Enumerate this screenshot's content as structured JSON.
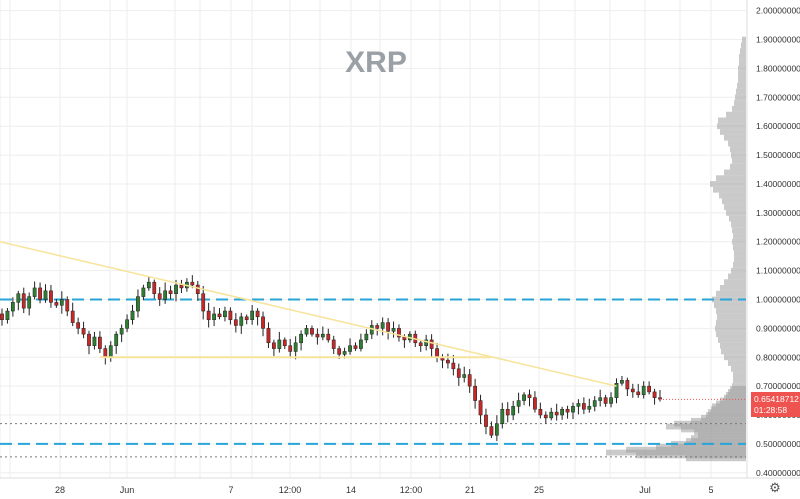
{
  "chart_data": {
    "type": "candlestick",
    "title": "XRP",
    "y_axis": {
      "min": 0.375,
      "max": 2.03,
      "ticks": [
        "0.40000000",
        "0.50000000",
        "0.60000000",
        "0.70000000",
        "0.80000000",
        "0.90000000",
        "1.00000000",
        "1.10000000",
        "1.20000000",
        "1.30000000",
        "1.40000000",
        "1.50000000",
        "1.60000000",
        "1.70000000",
        "1.80000000",
        "1.90000000",
        "2.00000000"
      ],
      "tick_values": [
        0.4,
        0.5,
        0.6,
        0.7,
        0.8,
        0.9,
        1.0,
        1.1,
        1.2,
        1.3,
        1.4,
        1.5,
        1.6,
        1.7,
        1.8,
        1.9,
        2.0
      ]
    },
    "x_axis": {
      "ticks": [
        "28",
        "Jun",
        "7",
        "12:00",
        "14",
        "12:00",
        "21",
        "25",
        "Jul",
        "5"
      ]
    },
    "grid": true,
    "current_price": "0.65418712",
    "countdown": "01:28:58",
    "closes": [
      0.93,
      0.96,
      0.99,
      1.02,
      0.97,
      1.01,
      1.04,
      1.0,
      1.03,
      0.99,
      0.98,
      1.0,
      0.96,
      0.92,
      0.9,
      0.88,
      0.84,
      0.87,
      0.83,
      0.8,
      0.84,
      0.88,
      0.9,
      0.93,
      0.96,
      1.01,
      1.04,
      1.06,
      1.02,
      1.0,
      1.03,
      1.02,
      1.05,
      1.04,
      1.06,
      1.05,
      1.02,
      0.96,
      0.93,
      0.95,
      0.94,
      0.96,
      0.93,
      0.91,
      0.94,
      0.93,
      0.96,
      0.94,
      0.9,
      0.85,
      0.83,
      0.86,
      0.84,
      0.82,
      0.85,
      0.88,
      0.9,
      0.88,
      0.87,
      0.88,
      0.86,
      0.83,
      0.81,
      0.82,
      0.84,
      0.83,
      0.86,
      0.88,
      0.91,
      0.9,
      0.92,
      0.89,
      0.9,
      0.87,
      0.86,
      0.88,
      0.85,
      0.84,
      0.86,
      0.83,
      0.8,
      0.79,
      0.78,
      0.76,
      0.73,
      0.74,
      0.7,
      0.65,
      0.6,
      0.56,
      0.53,
      0.57,
      0.62,
      0.6,
      0.63,
      0.65,
      0.67,
      0.66,
      0.62,
      0.6,
      0.59,
      0.61,
      0.6,
      0.62,
      0.61,
      0.63,
      0.64,
      0.62,
      0.63,
      0.65,
      0.66,
      0.64,
      0.66,
      0.71,
      0.72,
      0.69,
      0.68,
      0.67,
      0.7,
      0.68,
      0.66,
      0.655
    ],
    "volume_profile": [
      [
        0.45,
        60
      ],
      [
        0.46,
        110
      ],
      [
        0.47,
        140
      ],
      [
        0.48,
        120
      ],
      [
        0.49,
        90
      ],
      [
        0.5,
        75
      ],
      [
        0.51,
        60
      ],
      [
        0.52,
        55
      ],
      [
        0.53,
        48
      ],
      [
        0.54,
        52
      ],
      [
        0.55,
        65
      ],
      [
        0.56,
        80
      ],
      [
        0.57,
        72
      ],
      [
        0.58,
        55
      ],
      [
        0.59,
        45
      ],
      [
        0.6,
        40
      ],
      [
        0.61,
        38
      ],
      [
        0.62,
        35
      ],
      [
        0.63,
        34
      ],
      [
        0.64,
        30
      ],
      [
        0.65,
        26
      ],
      [
        0.66,
        22
      ],
      [
        0.67,
        20
      ],
      [
        0.68,
        18
      ],
      [
        0.69,
        16
      ],
      [
        0.7,
        14
      ],
      [
        0.72,
        13
      ],
      [
        0.74,
        13
      ],
      [
        0.76,
        15
      ],
      [
        0.78,
        18
      ],
      [
        0.8,
        22
      ],
      [
        0.82,
        25
      ],
      [
        0.84,
        26
      ],
      [
        0.86,
        28
      ],
      [
        0.88,
        30
      ],
      [
        0.9,
        31
      ],
      [
        0.92,
        30
      ],
      [
        0.94,
        29
      ],
      [
        0.96,
        30
      ],
      [
        0.98,
        32
      ],
      [
        1.0,
        34
      ],
      [
        1.02,
        30
      ],
      [
        1.04,
        26
      ],
      [
        1.06,
        22
      ],
      [
        1.08,
        18
      ],
      [
        1.1,
        15
      ],
      [
        1.12,
        13
      ],
      [
        1.14,
        12
      ],
      [
        1.16,
        12
      ],
      [
        1.18,
        13
      ],
      [
        1.2,
        14
      ],
      [
        1.22,
        13
      ],
      [
        1.24,
        14
      ],
      [
        1.26,
        15
      ],
      [
        1.28,
        17
      ],
      [
        1.3,
        20
      ],
      [
        1.32,
        22
      ],
      [
        1.34,
        24
      ],
      [
        1.36,
        27
      ],
      [
        1.38,
        33
      ],
      [
        1.4,
        36
      ],
      [
        1.42,
        30
      ],
      [
        1.44,
        22
      ],
      [
        1.46,
        16
      ],
      [
        1.48,
        14
      ],
      [
        1.5,
        15
      ],
      [
        1.52,
        16
      ],
      [
        1.54,
        18
      ],
      [
        1.56,
        22
      ],
      [
        1.58,
        26
      ],
      [
        1.6,
        29
      ],
      [
        1.62,
        28
      ],
      [
        1.64,
        20
      ],
      [
        1.66,
        14
      ],
      [
        1.68,
        12
      ],
      [
        1.7,
        11
      ],
      [
        1.72,
        10
      ],
      [
        1.74,
        9
      ],
      [
        1.76,
        8
      ],
      [
        1.78,
        8
      ],
      [
        1.8,
        8
      ],
      [
        1.82,
        7
      ],
      [
        1.84,
        7
      ],
      [
        1.86,
        6
      ],
      [
        1.88,
        5
      ],
      [
        1.9,
        4
      ]
    ],
    "annotations": {
      "support_dashed": [
        1.0,
        0.5
      ],
      "dotted_levels": [
        0.57,
        0.455
      ],
      "horizontal_line": 0.8,
      "trendline": [
        [
          0,
          1.2
        ],
        [
          120,
          0.7
        ]
      ]
    },
    "colors": {
      "up": "#26a69a",
      "down": "#ef5350",
      "bull_candle": "#2e7d32",
      "bear_candle": "#c62828",
      "dashed": "#29a4d6",
      "trendline": "#f7e39a",
      "volume": "#9e9e9e",
      "title": "#9aa0a6",
      "price_tag": "#ef5350"
    }
  }
}
